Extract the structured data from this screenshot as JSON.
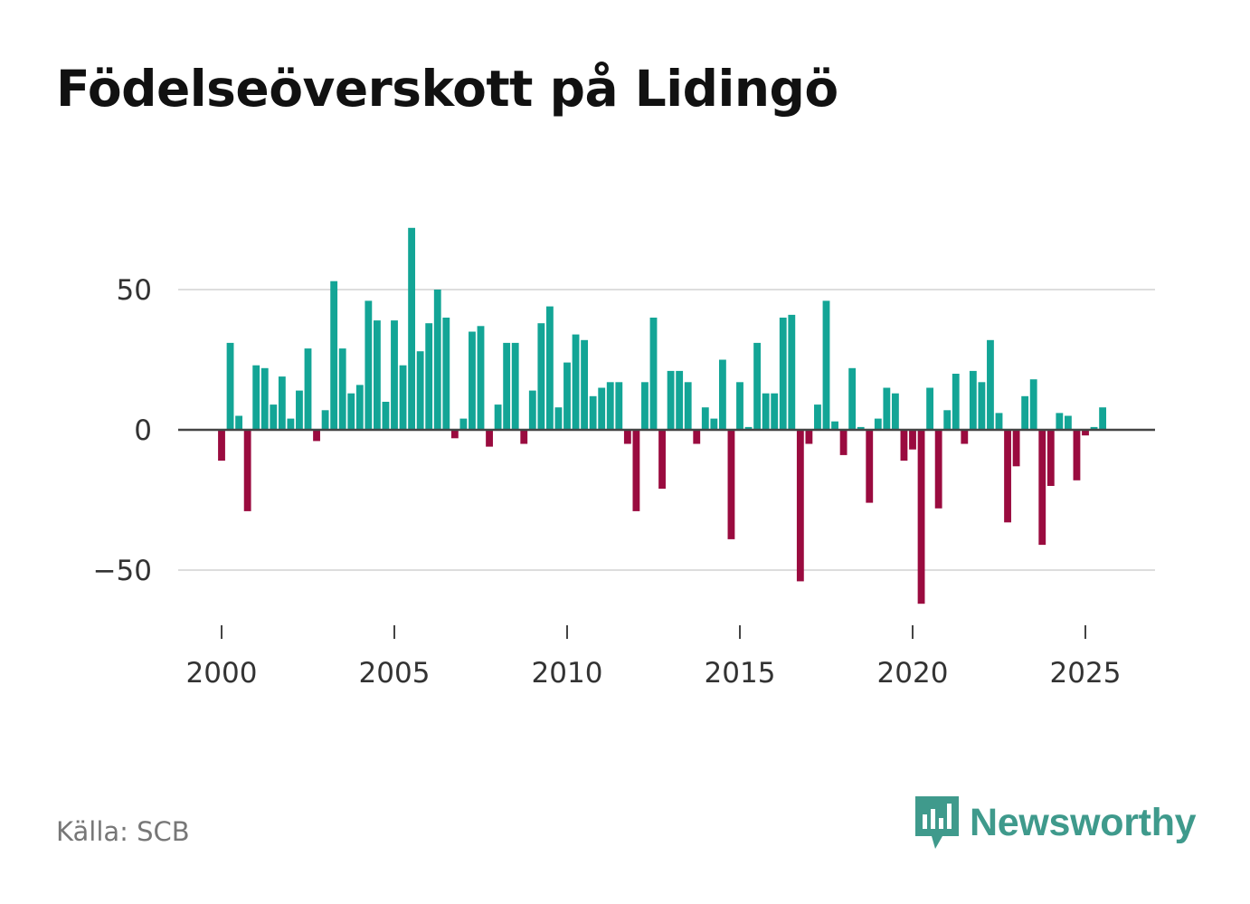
{
  "title": "Födelseöverskott på Lidingö",
  "source": "Källa: SCB",
  "brand": {
    "name": "Newsworthy",
    "icon": "newsworthy-logo-icon",
    "color": "#3f9a8c"
  },
  "colors": {
    "positive": "#13a596",
    "negative": "#9a0b3f",
    "grid": "#dddddd",
    "zero_line": "#444444",
    "tick_text": "#333333"
  },
  "chart_data": {
    "type": "bar",
    "title": "Födelseöverskott på Lidingö",
    "xlabel": "",
    "ylabel": "",
    "frequency": "quarterly",
    "x_start": 2000.0,
    "x_step": 0.25,
    "xlim": [
      1998.75,
      2027.0
    ],
    "ylim": [
      -70,
      80
    ],
    "x_ticks": [
      2000,
      2005,
      2010,
      2015,
      2020,
      2025
    ],
    "x_tick_labels": [
      "2000",
      "2005",
      "2010",
      "2015",
      "2020",
      "2025"
    ],
    "y_ticks": [
      -50,
      0,
      50
    ],
    "y_tick_labels": [
      "−50",
      "0",
      "50"
    ],
    "values": [
      -11,
      31,
      5,
      -29,
      23,
      22,
      9,
      19,
      4,
      14,
      29,
      -4,
      7,
      53,
      29,
      13,
      16,
      46,
      39,
      10,
      39,
      23,
      72,
      28,
      38,
      50,
      40,
      -3,
      4,
      35,
      37,
      -6,
      9,
      31,
      31,
      -5,
      14,
      38,
      44,
      8,
      24,
      34,
      32,
      12,
      15,
      17,
      17,
      -5,
      -29,
      17,
      40,
      -21,
      21,
      21,
      17,
      -5,
      8,
      4,
      25,
      -39,
      17,
      1,
      31,
      13,
      13,
      40,
      41,
      -54,
      -5,
      9,
      46,
      3,
      -9,
      22,
      1,
      -26,
      4,
      15,
      13,
      -11,
      -7,
      -62,
      15,
      -28,
      7,
      20,
      -5,
      21,
      17,
      32,
      6,
      -33,
      -13,
      12,
      18,
      -41,
      -20,
      6,
      5,
      -18,
      -2,
      1,
      8
    ]
  }
}
